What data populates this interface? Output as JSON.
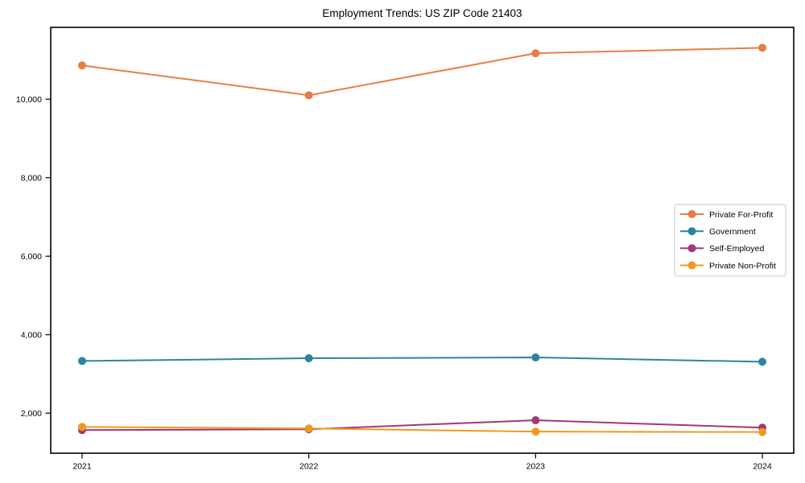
{
  "chart_data": {
    "type": "line",
    "title": "Employment Trends: US ZIP Code 21403",
    "xlabel": "",
    "ylabel": "",
    "categories": [
      "2021",
      "2022",
      "2023",
      "2024"
    ],
    "series": [
      {
        "name": "Private For-Profit",
        "color": "#e97d41",
        "values": [
          10860,
          10100,
          11170,
          11310
        ]
      },
      {
        "name": "Government",
        "color": "#2e84a0",
        "values": [
          3330,
          3400,
          3420,
          3310
        ]
      },
      {
        "name": "Self-Employed",
        "color": "#a23878",
        "values": [
          1570,
          1590,
          1820,
          1630
        ]
      },
      {
        "name": "Private Non-Profit",
        "color": "#ef9a1f",
        "values": [
          1650,
          1610,
          1530,
          1520
        ]
      }
    ],
    "ylim": [
      980,
      11830
    ],
    "y_ticks": [
      2000,
      4000,
      6000,
      8000,
      10000
    ],
    "y_tick_labels": [
      "2,000",
      "4,000",
      "6,000",
      "8,000",
      "10,000"
    ],
    "grid": false,
    "legend_position": "right",
    "marker": "circle",
    "frame": "full-box",
    "text_color": "#000000",
    "background_color": "#ffffff"
  }
}
